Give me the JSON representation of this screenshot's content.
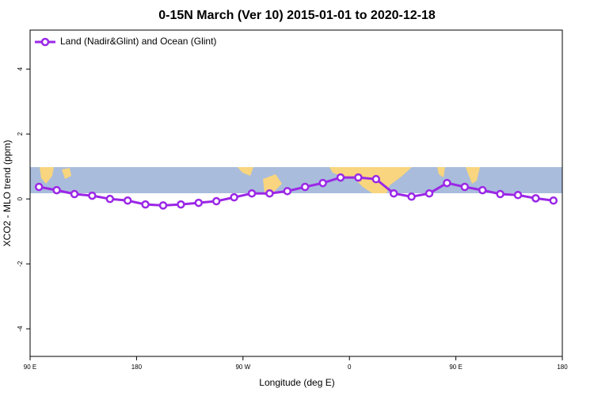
{
  "chart_data": {
    "type": "line",
    "title": "0-15N March (Ver 10)   2015-01-01 to 2020-12-18",
    "xlabel": "Longitude (deg E)",
    "ylabel": "XCO2 - MLO trend (ppm)",
    "x": [
      97.5,
      112.5,
      127.5,
      142.5,
      157.5,
      172.5,
      187.5,
      202.5,
      217.5,
      232.5,
      247.5,
      262.5,
      277.5,
      292.5,
      307.5,
      322.5,
      337.5,
      352.5,
      367.5,
      382.5,
      397.5,
      412.5,
      427.5,
      442.5,
      457.5,
      472.5,
      487.5,
      502.5,
      517.5,
      532.5
    ],
    "series": [
      {
        "name": "Land (Nadir&Glint) and Ocean (Glint)",
        "color": "#9b27e6",
        "values": [
          0.37,
          0.27,
          0.15,
          0.1,
          0.0,
          -0.05,
          -0.17,
          -0.2,
          -0.17,
          -0.12,
          -0.07,
          0.05,
          0.17,
          0.17,
          0.24,
          0.37,
          0.49,
          0.66,
          0.66,
          0.61,
          0.17,
          0.07,
          0.17,
          0.49,
          0.37,
          0.27,
          0.15,
          0.12,
          0.02,
          -0.05
        ]
      }
    ],
    "xlim": [
      90,
      540
    ],
    "xticks": [
      {
        "value": 90,
        "label": "90 E"
      },
      180,
      {
        "value": 270,
        "label": "90 W"
      },
      {
        "value": 360,
        "label": "0"
      },
      {
        "value": 450,
        "label": "90 E"
      },
      {
        "value": 540,
        "label": "180"
      }
    ],
    "ylim": [
      -4.85,
      5.2
    ],
    "yticks": [
      4,
      2,
      0,
      -2,
      -4
    ],
    "legend": "top-left",
    "grid": false
  }
}
